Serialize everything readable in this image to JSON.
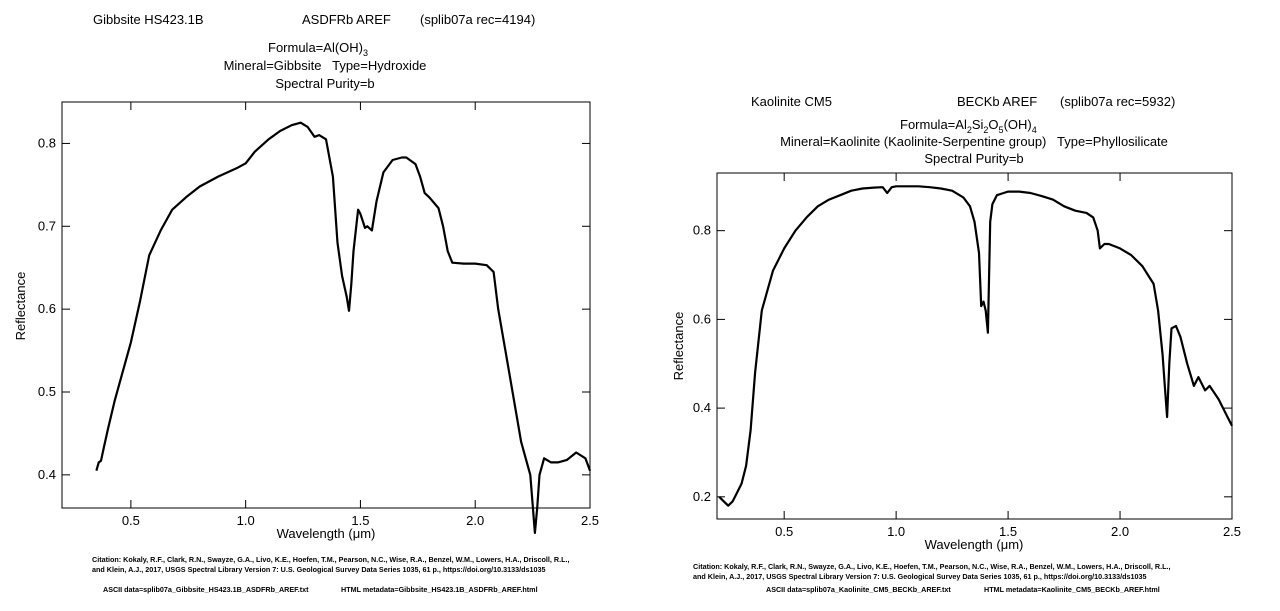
{
  "chart_data": [
    {
      "type": "line",
      "header": {
        "sample": "Gibbsite HS423.1B",
        "spectrometer": "ASDFRb AREF",
        "record": "(splib07a rec=4194)"
      },
      "formula_prefix": "Formula=Al(OH)",
      "formula_sub": "3",
      "mineral_line": "Mineral=Gibbsite   Type=Hydroxide",
      "purity_line": "Spectral Purity=b",
      "xlabel": "Wavelength (μm)",
      "ylabel": "Reflectance",
      "xlim": [
        0.2,
        2.5
      ],
      "ylim": [
        0.36,
        0.85
      ],
      "xticks": [
        0.5,
        1.0,
        1.5,
        2.0,
        2.5
      ],
      "xtick_labels": [
        "0.5",
        "1.0",
        "1.5",
        "2.0",
        "2.5"
      ],
      "yticks": [
        0.4,
        0.5,
        0.6,
        0.7,
        0.8
      ],
      "ytick_labels": [
        "0.4",
        "0.5",
        "0.6",
        "0.7",
        "0.8"
      ],
      "series": [
        {
          "x": [
            0.35,
            0.36,
            0.37,
            0.38,
            0.4,
            0.43,
            0.46,
            0.5,
            0.54,
            0.58,
            0.63,
            0.68,
            0.74,
            0.8,
            0.88,
            0.96,
            1.0,
            1.04,
            1.1,
            1.15,
            1.2,
            1.24,
            1.27,
            1.3,
            1.32,
            1.35,
            1.38,
            1.4,
            1.42,
            1.44,
            1.45,
            1.46,
            1.47,
            1.49,
            1.5,
            1.52,
            1.53,
            1.55,
            1.57,
            1.6,
            1.64,
            1.68,
            1.7,
            1.74,
            1.76,
            1.78,
            1.8,
            1.84,
            1.86,
            1.88,
            1.9,
            1.95,
            2.0,
            2.05,
            2.08,
            2.1,
            2.15,
            2.2,
            2.24,
            2.26,
            2.27,
            2.28,
            2.3,
            2.33,
            2.36,
            2.4,
            2.44,
            2.48,
            2.5
          ],
          "y": [
            0.405,
            0.415,
            0.417,
            0.43,
            0.455,
            0.49,
            0.52,
            0.56,
            0.61,
            0.665,
            0.695,
            0.72,
            0.735,
            0.748,
            0.76,
            0.77,
            0.776,
            0.79,
            0.805,
            0.815,
            0.822,
            0.825,
            0.82,
            0.808,
            0.81,
            0.805,
            0.76,
            0.68,
            0.64,
            0.615,
            0.598,
            0.63,
            0.67,
            0.72,
            0.715,
            0.698,
            0.7,
            0.695,
            0.73,
            0.765,
            0.78,
            0.783,
            0.783,
            0.775,
            0.76,
            0.74,
            0.735,
            0.722,
            0.7,
            0.67,
            0.656,
            0.655,
            0.655,
            0.653,
            0.645,
            0.6,
            0.52,
            0.44,
            0.4,
            0.33,
            0.36,
            0.4,
            0.42,
            0.415,
            0.415,
            0.418,
            0.427,
            0.42,
            0.405
          ]
        }
      ],
      "citation_line1": "Citation: Kokaly, R.F., Clark, R.N., Swayze, G.A., Livo, K.E., Hoefen, T.M., Pearson, N.C., Wise, R.A., Benzel, W.M., Lowers, H.A., Driscoll, R.L.,",
      "citation_line2": "and Klein, A.J., 2017, USGS Spectral Library Version 7: U.S. Geological Survey Data Series 1035, 61 p., https://doi.org/10.3133/ds1035",
      "ascii_data": "ASCII data=splib07a_Gibbsite_HS423.1B_ASDFRb_AREF.txt",
      "html_metadata": "HTML metadata=Gibbsite_HS423.1B_ASDFRb_AREF.html"
    },
    {
      "type": "line",
      "header": {
        "sample": "Kaolinite CM5",
        "spectrometer": "BECKb AREF",
        "record": "(splib07a rec=5932)"
      },
      "formula_prefix": "Formula=Al",
      "formula_parts": [
        [
          "Al",
          ""
        ],
        [
          "",
          "2"
        ],
        [
          "Si",
          ""
        ],
        [
          "",
          "2"
        ],
        [
          "O",
          ""
        ],
        [
          "",
          "5"
        ],
        [
          "(OH)",
          ""
        ],
        [
          "",
          "4"
        ]
      ],
      "mineral_line": "Mineral=Kaolinite (Kaolinite-Serpentine group)   Type=Phyllosilicate",
      "purity_line": "Spectral Purity=b",
      "xlabel": "Wavelength (μm)",
      "ylabel": "Reflectance",
      "xlim": [
        0.2,
        2.5
      ],
      "ylim": [
        0.15,
        0.93
      ],
      "xticks": [
        0.5,
        1.0,
        1.5,
        2.0,
        2.5
      ],
      "xtick_labels": [
        "0.5",
        "1.0",
        "1.5",
        "2.0",
        "2.5"
      ],
      "yticks": [
        0.2,
        0.4,
        0.6,
        0.8
      ],
      "ytick_labels": [
        "0.2",
        "0.4",
        "0.6",
        "0.8"
      ],
      "series": [
        {
          "x": [
            0.21,
            0.23,
            0.25,
            0.27,
            0.29,
            0.31,
            0.33,
            0.35,
            0.37,
            0.4,
            0.45,
            0.5,
            0.55,
            0.6,
            0.65,
            0.7,
            0.75,
            0.8,
            0.85,
            0.9,
            0.94,
            0.96,
            0.98,
            1.0,
            1.05,
            1.1,
            1.15,
            1.2,
            1.25,
            1.3,
            1.33,
            1.35,
            1.37,
            1.38,
            1.39,
            1.4,
            1.41,
            1.42,
            1.43,
            1.45,
            1.48,
            1.5,
            1.55,
            1.6,
            1.65,
            1.7,
            1.75,
            1.8,
            1.85,
            1.88,
            1.9,
            1.91,
            1.93,
            1.95,
            2.0,
            2.05,
            2.1,
            2.15,
            2.17,
            2.19,
            2.2,
            2.21,
            2.22,
            2.23,
            2.25,
            2.27,
            2.3,
            2.33,
            2.35,
            2.38,
            2.4,
            2.44,
            2.48,
            2.5
          ],
          "y": [
            0.2,
            0.19,
            0.18,
            0.19,
            0.21,
            0.23,
            0.27,
            0.35,
            0.48,
            0.62,
            0.71,
            0.76,
            0.8,
            0.83,
            0.855,
            0.87,
            0.88,
            0.89,
            0.895,
            0.897,
            0.898,
            0.885,
            0.898,
            0.9,
            0.9,
            0.9,
            0.898,
            0.895,
            0.89,
            0.875,
            0.855,
            0.82,
            0.75,
            0.63,
            0.64,
            0.62,
            0.57,
            0.82,
            0.86,
            0.88,
            0.885,
            0.888,
            0.888,
            0.885,
            0.878,
            0.87,
            0.855,
            0.845,
            0.84,
            0.83,
            0.8,
            0.76,
            0.77,
            0.77,
            0.76,
            0.745,
            0.72,
            0.68,
            0.62,
            0.52,
            0.45,
            0.38,
            0.5,
            0.58,
            0.585,
            0.56,
            0.5,
            0.45,
            0.47,
            0.44,
            0.45,
            0.42,
            0.38,
            0.36
          ]
        }
      ],
      "citation_line1": "Citation: Kokaly, R.F., Clark, R.N., Swayze, G.A., Livo, K.E., Hoefen, T.M., Pearson, N.C., Wise, R.A., Benzel, W.M., Lowers, H.A., Driscoll, R.L.,",
      "citation_line2": "and Klein, A.J., 2017, USGS Spectral Library Version 7: U.S. Geological Survey Data Series 1035, 61 p., https://doi.org/10.3133/ds1035",
      "ascii_data": "ASCII data=splib07a_Kaolinite_CM5_BECKb_AREF.txt",
      "html_metadata": "HTML metadata=Kaolinite_CM5_BECKb_AREF.html"
    }
  ]
}
